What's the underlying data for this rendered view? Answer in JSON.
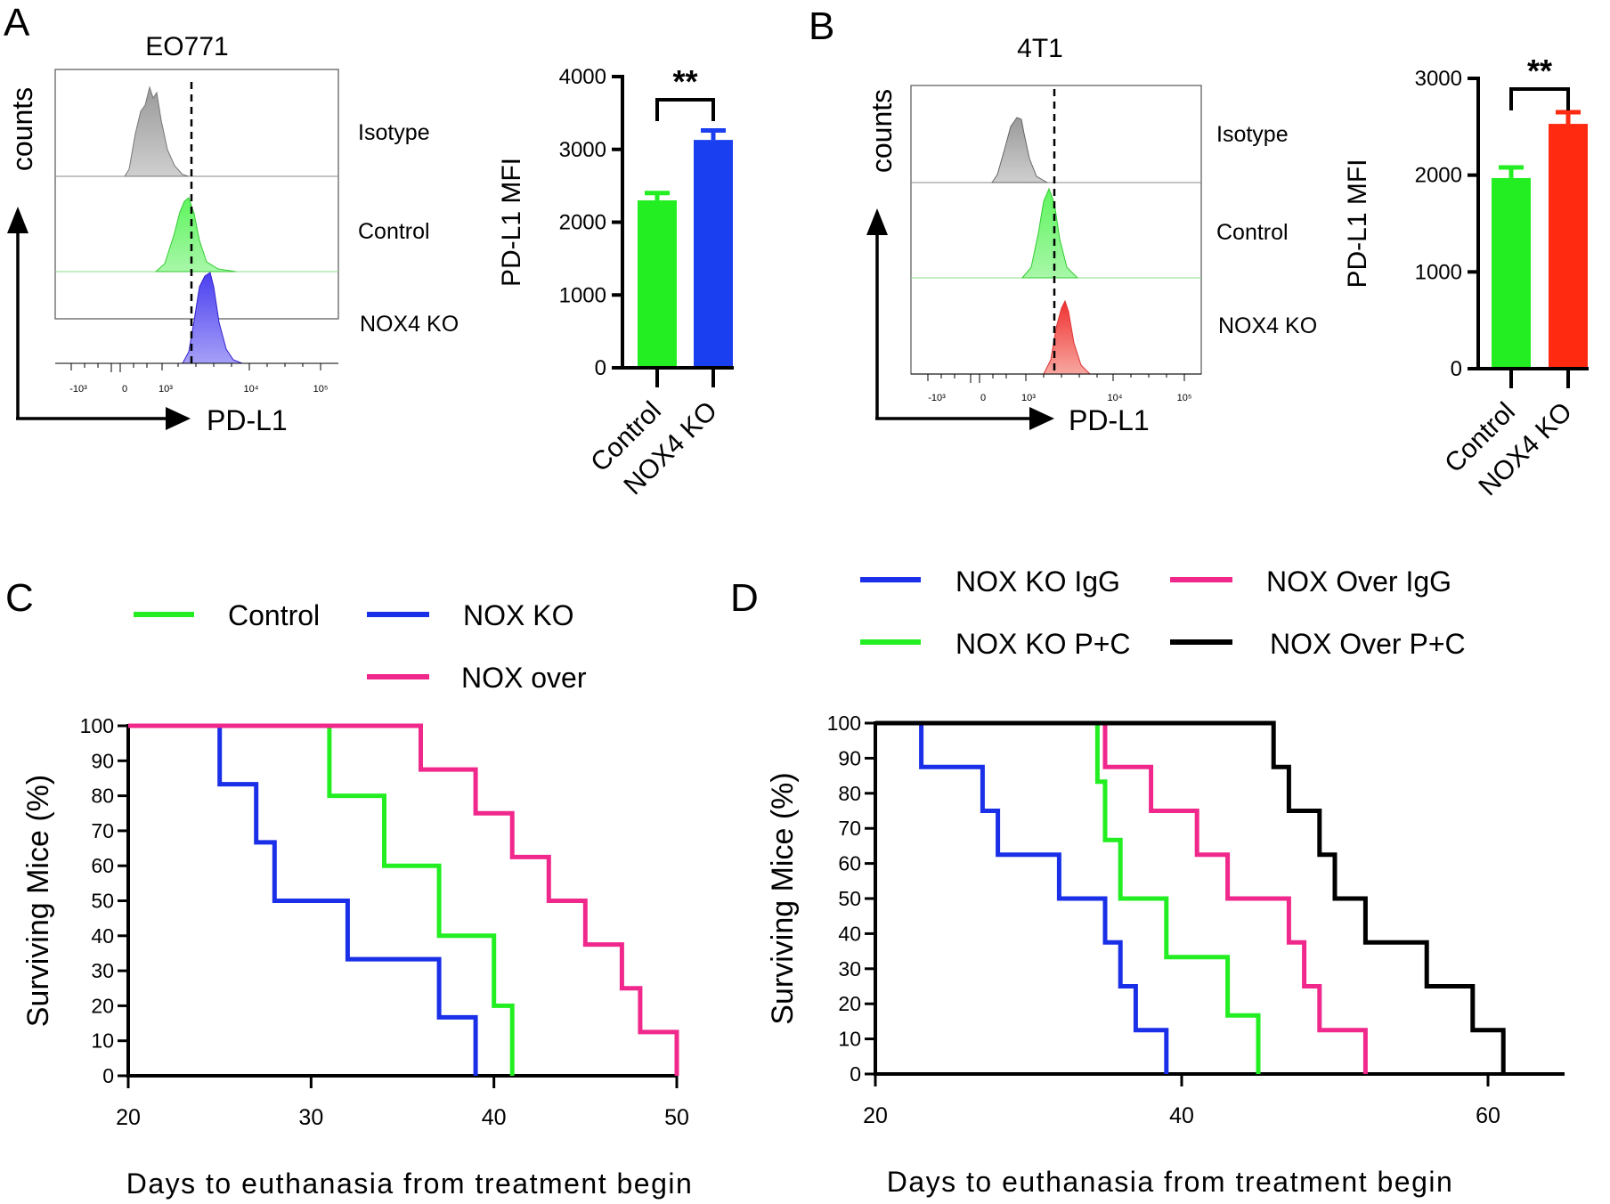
{
  "panels": {
    "A": {
      "letter": "A",
      "cell_line": "EO771",
      "flow": {
        "y_label": "counts",
        "x_label": "PD-L1",
        "tick_labels": [
          "-10³",
          "0",
          "10³",
          "10⁴",
          "10⁵"
        ],
        "rows": [
          "Isotype",
          "Control",
          "NOX4 KO"
        ]
      },
      "bar": {
        "type": "bar",
        "ylabel": "PD-L1 MFI",
        "ylim": [
          0,
          4000
        ],
        "yticks": [
          0,
          1000,
          2000,
          3000,
          4000
        ],
        "categories": [
          "Control",
          "NOX4 KO"
        ],
        "values": [
          2300,
          3130
        ],
        "errors": [
          100,
          130
        ],
        "colors": [
          "#22ee22",
          "#1a3ff0"
        ],
        "significance": "**"
      }
    },
    "B": {
      "letter": "B",
      "cell_line": "4T1",
      "flow": {
        "y_label": "counts",
        "x_label": "PD-L1",
        "tick_labels": [
          "-10³",
          "0",
          "10³",
          "10⁴",
          "10⁵"
        ],
        "rows": [
          "Isotype",
          "Control",
          "NOX4 KO"
        ]
      },
      "bar": {
        "type": "bar",
        "ylabel": "PD-L1 MFI",
        "ylim": [
          0,
          3000
        ],
        "yticks": [
          0,
          1000,
          2000,
          3000
        ],
        "categories": [
          "Control",
          "NOX4 KO"
        ],
        "values": [
          1970,
          2530
        ],
        "errors": [
          110,
          120
        ],
        "colors": [
          "#22ee22",
          "#ff2a10"
        ],
        "significance": "**"
      }
    },
    "C": {
      "letter": "C",
      "legend": [
        "Control",
        "NOX KO",
        "NOX over"
      ]
    },
    "D": {
      "letter": "D",
      "legend": [
        "NOX KO IgG",
        "NOX Over IgG",
        "NOX KO P+C",
        "NOX Over P+C"
      ]
    }
  },
  "chart_data": [
    {
      "type": "bar",
      "title": "EO771",
      "ylabel": "PD-L1 MFI",
      "categories": [
        "Control",
        "NOX4 KO"
      ],
      "values": [
        2300,
        3130
      ],
      "ylim": [
        0,
        4000
      ]
    },
    {
      "type": "bar",
      "title": "4T1",
      "ylabel": "PD-L1 MFI",
      "categories": [
        "Control",
        "NOX4 KO"
      ],
      "values": [
        1970,
        2530
      ],
      "ylim": [
        0,
        3000
      ]
    },
    {
      "type": "line",
      "step": true,
      "title": "",
      "xlabel": "Days to euthanasia from treatment begin",
      "ylabel": "Surviving Mice (%)",
      "xlim": [
        20,
        50
      ],
      "xticks": [
        20,
        30,
        40,
        50
      ],
      "ylim": [
        0,
        100
      ],
      "yticks": [
        0,
        10,
        20,
        30,
        40,
        50,
        60,
        70,
        80,
        90,
        100
      ],
      "series": [
        {
          "name": "Control",
          "color": "#22ee22",
          "points": [
            [
              20,
              100
            ],
            [
              31,
              100
            ],
            [
              31,
              80
            ],
            [
              34,
              80
            ],
            [
              34,
              60
            ],
            [
              37,
              60
            ],
            [
              37,
              40
            ],
            [
              40,
              40
            ],
            [
              40,
              20
            ],
            [
              41,
              20
            ],
            [
              41,
              0
            ]
          ]
        },
        {
          "name": "NOX KO",
          "color": "#1a2fe8",
          "points": [
            [
              20,
              100
            ],
            [
              25,
              100
            ],
            [
              25,
              83.3
            ],
            [
              27,
              83.3
            ],
            [
              27,
              66.7
            ],
            [
              28,
              66.7
            ],
            [
              28,
              50
            ],
            [
              32,
              50
            ],
            [
              32,
              33.3
            ],
            [
              37,
              33.3
            ],
            [
              37,
              16.7
            ],
            [
              39,
              16.7
            ],
            [
              39,
              0
            ]
          ]
        },
        {
          "name": "NOX over",
          "color": "#f0288c",
          "points": [
            [
              20,
              100
            ],
            [
              36,
              100
            ],
            [
              36,
              87.5
            ],
            [
              39,
              87.5
            ],
            [
              39,
              75
            ],
            [
              41,
              75
            ],
            [
              41,
              62.5
            ],
            [
              43,
              62.5
            ],
            [
              43,
              50
            ],
            [
              45,
              50
            ],
            [
              45,
              37.5
            ],
            [
              47,
              37.5
            ],
            [
              47,
              25
            ],
            [
              48,
              25
            ],
            [
              48,
              12.5
            ],
            [
              50,
              12.5
            ],
            [
              50,
              0
            ]
          ]
        }
      ]
    },
    {
      "type": "line",
      "step": true,
      "title": "",
      "xlabel": "Days to euthanasia from treatment begin",
      "ylabel": "Surviving Mice (%)",
      "xlim": [
        20,
        65
      ],
      "xticks": [
        20,
        40,
        60
      ],
      "ylim": [
        0,
        100
      ],
      "yticks": [
        0,
        10,
        20,
        30,
        40,
        50,
        60,
        70,
        80,
        90,
        100
      ],
      "series": [
        {
          "name": "NOX KO IgG",
          "color": "#1a2fe8",
          "points": [
            [
              20,
              100
            ],
            [
              23,
              100
            ],
            [
              23,
              87.5
            ],
            [
              27,
              87.5
            ],
            [
              27,
              75
            ],
            [
              28,
              75
            ],
            [
              28,
              62.5
            ],
            [
              32,
              62.5
            ],
            [
              32,
              50
            ],
            [
              35,
              50
            ],
            [
              35,
              37.5
            ],
            [
              36,
              37.5
            ],
            [
              36,
              25
            ],
            [
              37,
              25
            ],
            [
              37,
              12.5
            ],
            [
              39,
              12.5
            ],
            [
              39,
              0
            ]
          ]
        },
        {
          "name": "NOX KO P+C",
          "color": "#22ee22",
          "points": [
            [
              20,
              100
            ],
            [
              34.5,
              100
            ],
            [
              34.5,
              83.3
            ],
            [
              35,
              83.3
            ],
            [
              35,
              66.7
            ],
            [
              36,
              66.7
            ],
            [
              36,
              50
            ],
            [
              39,
              50
            ],
            [
              39,
              33.3
            ],
            [
              43,
              33.3
            ],
            [
              43,
              16.7
            ],
            [
              45,
              16.7
            ],
            [
              45,
              0
            ]
          ]
        },
        {
          "name": "NOX Over IgG",
          "color": "#f0288c",
          "points": [
            [
              20,
              100
            ],
            [
              35,
              100
            ],
            [
              35,
              87.5
            ],
            [
              38,
              87.5
            ],
            [
              38,
              75
            ],
            [
              41,
              75
            ],
            [
              41,
              62.5
            ],
            [
              43,
              62.5
            ],
            [
              43,
              50
            ],
            [
              47,
              50
            ],
            [
              47,
              37.5
            ],
            [
              48,
              37.5
            ],
            [
              48,
              25
            ],
            [
              49,
              25
            ],
            [
              49,
              12.5
            ],
            [
              52,
              12.5
            ],
            [
              52,
              0
            ]
          ]
        },
        {
          "name": "NOX Over P+C",
          "color": "#000000",
          "points": [
            [
              20,
              100
            ],
            [
              46,
              100
            ],
            [
              46,
              87.5
            ],
            [
              47,
              87.5
            ],
            [
              47,
              75
            ],
            [
              49,
              75
            ],
            [
              49,
              62.5
            ],
            [
              50,
              62.5
            ],
            [
              50,
              50
            ],
            [
              52,
              50
            ],
            [
              52,
              37.5
            ],
            [
              56,
              37.5
            ],
            [
              56,
              25
            ],
            [
              59,
              25
            ],
            [
              59,
              12.5
            ],
            [
              61,
              12.5
            ],
            [
              61,
              0
            ]
          ]
        }
      ]
    }
  ]
}
